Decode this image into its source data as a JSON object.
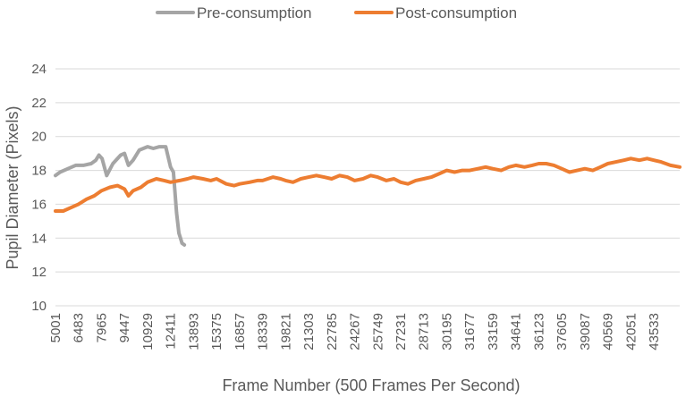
{
  "chart_data": {
    "type": "line",
    "xlabel": "Frame Number (500 Frames Per Second)",
    "ylabel": "Pupil Diameter (Pixels)",
    "ylim": [
      10,
      24
    ],
    "yticks": [
      10,
      12,
      14,
      16,
      18,
      20,
      22,
      24
    ],
    "xticks": [
      "5001",
      "6483",
      "7965",
      "9447",
      "10929",
      "12411",
      "13893",
      "15375",
      "16857",
      "18339",
      "19821",
      "21303",
      "22785",
      "24267",
      "25749",
      "27231",
      "28713",
      "30195",
      "31677",
      "33159",
      "34641",
      "36123",
      "37605",
      "39087",
      "40569",
      "42051",
      "43533"
    ],
    "grid": "horizontal",
    "legend_position": "top",
    "series": [
      {
        "name": "Pre-consumption",
        "color": "#a5a5a5",
        "x": [
          5001,
          5300,
          5800,
          6300,
          6800,
          7300,
          7600,
          7800,
          8000,
          8300,
          8700,
          9200,
          9447,
          9700,
          10000,
          10400,
          10929,
          11300,
          11700,
          12100,
          12411,
          12600,
          12800,
          12950,
          13050,
          13150,
          13300,
          13450,
          13600,
          13750,
          13893
        ],
        "values": [
          17.7,
          17.9,
          18.1,
          18.3,
          18.3,
          18.4,
          18.6,
          18.9,
          18.7,
          17.7,
          18.4,
          18.9,
          19.0,
          18.3,
          18.6,
          19.2,
          19.4,
          19.3,
          19.4,
          19.4,
          18.2,
          17.9,
          15.5,
          14.3,
          14.0,
          13.7,
          13.6,
          null,
          null,
          null,
          null
        ]
      },
      {
        "name": "Post-consumption",
        "color": "#ed7d31",
        "x": [
          5001,
          5500,
          6000,
          6483,
          7000,
          7500,
          7965,
          8500,
          9000,
          9447,
          9700,
          10000,
          10500,
          10929,
          11500,
          12000,
          12411,
          13000,
          13500,
          13893,
          14500,
          15000,
          15375,
          16000,
          16500,
          16857,
          17500,
          18000,
          18339,
          19000,
          19500,
          19821,
          20300,
          20800,
          21303,
          21800,
          22300,
          22785,
          23300,
          23800,
          24267,
          24800,
          25300,
          25749,
          26300,
          26800,
          27231,
          27700,
          28200,
          28713,
          29200,
          29700,
          30195,
          30700,
          31200,
          31677,
          32200,
          32700,
          33159,
          33700,
          34200,
          34641,
          35200,
          35700,
          36123,
          36600,
          37100,
          37605,
          38100,
          38600,
          39087,
          39600,
          40100,
          40569,
          41100,
          41600,
          42051,
          42600,
          43100,
          43533,
          44000,
          44600,
          45200
        ],
        "values": [
          15.6,
          15.6,
          15.8,
          16.0,
          16.3,
          16.5,
          16.8,
          17.0,
          17.1,
          16.9,
          16.5,
          16.8,
          17.0,
          17.3,
          17.5,
          17.4,
          17.3,
          17.4,
          17.5,
          17.6,
          17.5,
          17.4,
          17.5,
          17.2,
          17.1,
          17.2,
          17.3,
          17.4,
          17.4,
          17.6,
          17.5,
          17.4,
          17.3,
          17.5,
          17.6,
          17.7,
          17.6,
          17.5,
          17.7,
          17.6,
          17.4,
          17.5,
          17.7,
          17.6,
          17.4,
          17.5,
          17.3,
          17.2,
          17.4,
          17.5,
          17.6,
          17.8,
          18.0,
          17.9,
          18.0,
          18.0,
          18.1,
          18.2,
          18.1,
          18.0,
          18.2,
          18.3,
          18.2,
          18.3,
          18.4,
          18.4,
          18.3,
          18.1,
          17.9,
          18.0,
          18.1,
          18.0,
          18.2,
          18.4,
          18.5,
          18.6,
          18.7,
          18.6,
          18.7,
          18.6,
          18.5,
          18.3,
          18.2
        ]
      }
    ]
  }
}
